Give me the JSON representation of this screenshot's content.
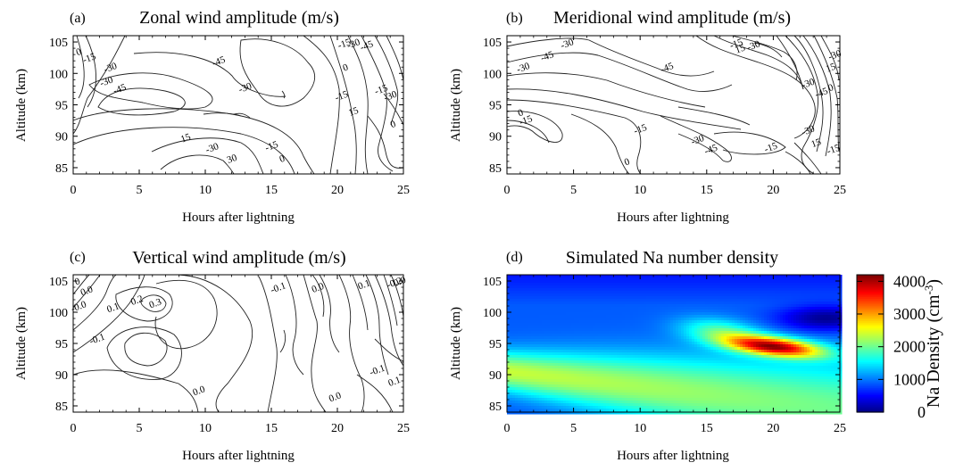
{
  "chart_data": [
    {
      "type": "contour",
      "panel_label": "(a)",
      "title": "Zonal wind amplitude (m/s)",
      "xlabel": "Hours after lightning",
      "ylabel": "Altitude (km)",
      "xlim": [
        0,
        25
      ],
      "ylim": [
        84,
        106
      ],
      "xticks": [
        "0",
        "5",
        "10",
        "15",
        "20",
        "25"
      ],
      "yticks": [
        "85",
        "90",
        "95",
        "100",
        "105"
      ],
      "contour_labels": [
        {
          "text": "0",
          "x": 0.4,
          "y": 103.5
        },
        {
          "text": "-15",
          "x": 1.2,
          "y": 102.5
        },
        {
          "text": "-30",
          "x": 2.8,
          "y": 101.0
        },
        {
          "text": "-30",
          "x": 2.5,
          "y": 98.8
        },
        {
          "text": "-45",
          "x": 3.5,
          "y": 97.6
        },
        {
          "text": "-45",
          "x": 11.0,
          "y": 102.0
        },
        {
          "text": "-30",
          "x": 13.0,
          "y": 97.8
        },
        {
          "text": "-15",
          "x": 20.3,
          "y": 96.5
        },
        {
          "text": "15",
          "x": 21.2,
          "y": 94.0
        },
        {
          "text": "-15",
          "x": 20.5,
          "y": 104.8
        },
        {
          "text": "-30",
          "x": 21.2,
          "y": 104.8
        },
        {
          "text": "-45",
          "x": 22.2,
          "y": 104.5
        },
        {
          "text": "0",
          "x": 20.6,
          "y": 101.0
        },
        {
          "text": "-15",
          "x": 23.3,
          "y": 97.5
        },
        {
          "text": "-30",
          "x": 24.0,
          "y": 96.5
        },
        {
          "text": "0",
          "x": 24.2,
          "y": 92.0
        },
        {
          "text": "15",
          "x": 8.5,
          "y": 89.8
        },
        {
          "text": "-30",
          "x": 10.5,
          "y": 88.2
        },
        {
          "text": "30",
          "x": 12.0,
          "y": 86.5
        },
        {
          "text": "-15",
          "x": 15.0,
          "y": 88.5
        },
        {
          "text": "0",
          "x": 15.8,
          "y": 86.5
        }
      ]
    },
    {
      "type": "contour",
      "panel_label": "(b)",
      "title": "Meridional wind amplitude (m/s)",
      "xlabel": "Hours after lightning",
      "ylabel": "Altitude (km)",
      "xlim": [
        0,
        25
      ],
      "ylim": [
        84,
        106
      ],
      "xticks": [
        "0",
        "5",
        "10",
        "15",
        "20",
        "25"
      ],
      "yticks": [
        "85",
        "90",
        "95",
        "100",
        "105"
      ],
      "contour_labels": [
        {
          "text": "-30",
          "x": 4.5,
          "y": 104.8
        },
        {
          "text": "-45",
          "x": 3.0,
          "y": 102.8
        },
        {
          "text": "-30",
          "x": 1.2,
          "y": 101.0
        },
        {
          "text": "-45",
          "x": 12.0,
          "y": 101.0
        },
        {
          "text": "-15",
          "x": 17.2,
          "y": 104.8
        },
        {
          "text": "15",
          "x": 17.5,
          "y": 104.0
        },
        {
          "text": "-30",
          "x": 18.5,
          "y": 104.5
        },
        {
          "text": "-30",
          "x": 22.6,
          "y": 98.5
        },
        {
          "text": "-45",
          "x": 23.6,
          "y": 97.0
        },
        {
          "text": "0",
          "x": 24.3,
          "y": 97.8
        },
        {
          "text": "15",
          "x": 24.3,
          "y": 101.0
        },
        {
          "text": "-30",
          "x": 24.6,
          "y": 103.0
        },
        {
          "text": "0",
          "x": 1.0,
          "y": 93.8
        },
        {
          "text": "-15",
          "x": 1.4,
          "y": 92.6
        },
        {
          "text": "-15",
          "x": 10.0,
          "y": 91.2
        },
        {
          "text": "-30",
          "x": 14.3,
          "y": 89.5
        },
        {
          "text": "-45",
          "x": 15.3,
          "y": 88.0
        },
        {
          "text": "-15",
          "x": 19.8,
          "y": 88.3
        },
        {
          "text": "-30",
          "x": 22.6,
          "y": 91.0
        },
        {
          "text": "15",
          "x": 23.2,
          "y": 89.0
        },
        {
          "text": "0",
          "x": 9.0,
          "y": 86.0
        },
        {
          "text": "-15",
          "x": 24.5,
          "y": 88.0
        }
      ]
    },
    {
      "type": "contour",
      "panel_label": "(c)",
      "title": "Vertical wind amplitude (m/s)",
      "xlabel": "Hours after lightning",
      "ylabel": "Altitude (km)",
      "xlim": [
        0,
        25
      ],
      "ylim": [
        84,
        106
      ],
      "xticks": [
        "0",
        "5",
        "10",
        "15",
        "20",
        "25"
      ],
      "yticks": [
        "85",
        "90",
        "95",
        "100",
        "105"
      ],
      "contour_labels": [
        {
          "text": "0",
          "x": 0.3,
          "y": 105.0
        },
        {
          "text": "0.0",
          "x": 1.0,
          "y": 103.5
        },
        {
          "text": "-0.0",
          "x": 0.4,
          "y": 101.0
        },
        {
          "text": "0.1",
          "x": 3.0,
          "y": 100.8
        },
        {
          "text": "0.2",
          "x": 4.8,
          "y": 102.0
        },
        {
          "text": "0.3",
          "x": 6.2,
          "y": 101.5
        },
        {
          "text": "-0.1",
          "x": 1.8,
          "y": 95.8
        },
        {
          "text": "-0.1",
          "x": 15.5,
          "y": 104.0
        },
        {
          "text": "0.0",
          "x": 18.5,
          "y": 104.0
        },
        {
          "text": "0.1",
          "x": 22.0,
          "y": 104.5
        },
        {
          "text": "-0.2",
          "x": 24.3,
          "y": 104.8
        },
        {
          "text": "0.0",
          "x": 24.7,
          "y": 105.0
        },
        {
          "text": "0.0",
          "x": 19.8,
          "y": 86.5
        },
        {
          "text": "-0.1",
          "x": 23.0,
          "y": 90.8
        },
        {
          "text": "0.0",
          "x": 9.5,
          "y": 87.5
        },
        {
          "text": "0.1",
          "x": 24.3,
          "y": 89.0
        }
      ]
    },
    {
      "type": "heatmap",
      "panel_label": "(d)",
      "title": "Simulated Na number density",
      "xlabel": "Hours after lightning",
      "ylabel": "Altitude (km)",
      "xlim": [
        0,
        25
      ],
      "ylim": [
        84,
        106
      ],
      "xticks": [
        "0",
        "5",
        "10",
        "15",
        "20",
        "25"
      ],
      "yticks": [
        "85",
        "90",
        "95",
        "100",
        "105"
      ],
      "colorbar": {
        "label": "Na Density (cm",
        "label_exp": "-3",
        "label_end": ")",
        "range": [
          0,
          4200
        ],
        "ticks": [
          "0",
          "1000",
          "2000",
          "3000",
          "4000"
        ],
        "tick_values": [
          0,
          1000,
          2000,
          3000,
          4000
        ],
        "colormap": "jet"
      },
      "features": [
        {
          "shape": "band",
          "x": [
            0,
            25
          ],
          "center_y_start": 90.5,
          "center_y_end": 84.5,
          "peak_value": 2400
        },
        {
          "shape": "blob",
          "center_x": 20,
          "center_y": 94.5,
          "peak_value": 4000
        },
        {
          "shape": "blob",
          "center_x": 16,
          "center_y": 97,
          "peak_value": 1900
        },
        {
          "shape": "low",
          "center_x": 24,
          "center_y": 99,
          "min_value": 0
        }
      ]
    }
  ]
}
